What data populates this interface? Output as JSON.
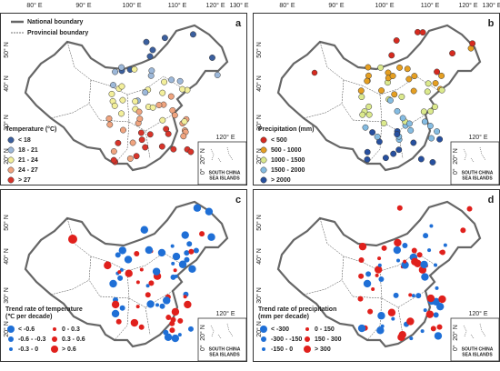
{
  "top_axis_labels": [
    "80° E",
    "90° E",
    "100° E",
    "110° E",
    "120° E",
    "130° E"
  ],
  "left_axis_labels": [
    "50° N",
    "40° N",
    "30° N",
    "20° N"
  ],
  "boundary_legend": {
    "national": "National boundary",
    "provincial": "Provincial boundary"
  },
  "inset": {
    "lon": "120° E",
    "lat": "20° N",
    "equator": "0°",
    "caption": [
      "SOUTH CHINA",
      "SEA ISLANDS"
    ]
  },
  "panels": [
    {
      "letter": "a",
      "legend_title": [
        "Temperature (°C)"
      ],
      "legend": [
        {
          "label": "< 18",
          "color": "#3b5f9e"
        },
        {
          "label": "18 - 21",
          "color": "#9db8d9"
        },
        {
          "label": "21 - 24",
          "color": "#f3ef9b"
        },
        {
          "label": "24 - 27",
          "color": "#f0a47f"
        },
        {
          "label": "> 27",
          "color": "#d8342a"
        }
      ]
    },
    {
      "letter": "b",
      "legend_title": [
        "Precipitation (mm)"
      ],
      "legend": [
        {
          "label": "< 500",
          "color": "#d62a1f"
        },
        {
          "label": "500 - 1000",
          "color": "#e59f22"
        },
        {
          "label": "1000 - 1500",
          "color": "#dbe98c"
        },
        {
          "label": "1500 - 2000",
          "color": "#85bce2"
        },
        {
          "label": "> 2000",
          "color": "#27509f"
        }
      ]
    },
    {
      "letter": "c",
      "legend_title": [
        "Trend rate of temperature",
        "(℃ per decade)"
      ],
      "legend": [
        {
          "label": "< -0.6",
          "color": "#1f6fd6"
        },
        {
          "label": "-0.6 - -0.3",
          "color": "#1f6fd6"
        },
        {
          "label": "-0.3 - 0",
          "color": "#1f6fd6"
        },
        {
          "label": "0 - 0.3",
          "color": "#e0201c"
        },
        {
          "label": "0.3 - 0.6",
          "color": "#e0201c"
        },
        {
          "label": "> 0.6",
          "color": "#e0201c"
        }
      ]
    },
    {
      "letter": "d",
      "legend_title": [
        "Trend rate of precipitation",
        "(mm per decade)"
      ],
      "legend": [
        {
          "label": "< -300",
          "color": "#1f6fd6"
        },
        {
          "label": "-300 - -150",
          "color": "#1f6fd6"
        },
        {
          "label": "-150 - 0",
          "color": "#1f6fd6"
        },
        {
          "label": "0 - 150",
          "color": "#e0201c"
        },
        {
          "label": "150 - 300",
          "color": "#e0201c"
        },
        {
          "label": "> 300",
          "color": "#e0201c"
        }
      ]
    }
  ]
}
